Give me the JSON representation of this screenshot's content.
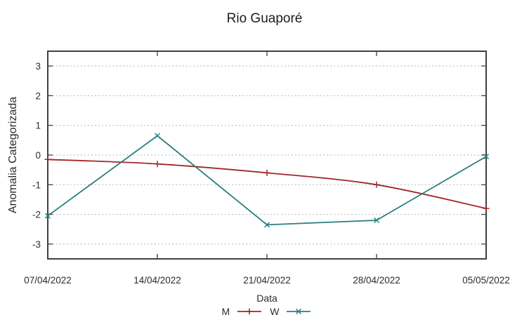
{
  "chart_data": {
    "type": "line",
    "title": "Rio Guaporé",
    "xlabel": "Data",
    "ylabel": "Anomalia Categorizada",
    "categories": [
      "07/04/2022",
      "14/04/2022",
      "21/04/2022",
      "28/04/2022",
      "05/05/2022"
    ],
    "series": [
      {
        "name": "M",
        "marker": "plus",
        "color": "#a12727",
        "smooth": true,
        "values": [
          -0.15,
          -0.3,
          -0.6,
          -1.0,
          -1.8
        ]
      },
      {
        "name": "W",
        "marker": "cross",
        "color": "#287f7f",
        "smooth": false,
        "values": [
          -2.05,
          0.65,
          -2.35,
          -2.2,
          -0.05
        ]
      }
    ],
    "ylim": [
      -3.5,
      3.5
    ],
    "yticks": [
      -3,
      -2,
      -1,
      0,
      1,
      2,
      3
    ],
    "grid": {
      "horizontal": true,
      "vertical": false,
      "style": "dotted"
    },
    "legend_position": "bottom-center",
    "colors": {
      "background": "#ffffff",
      "axis": "#404040",
      "grid": "#b8b8b8",
      "text": "#2b2b2b"
    }
  }
}
